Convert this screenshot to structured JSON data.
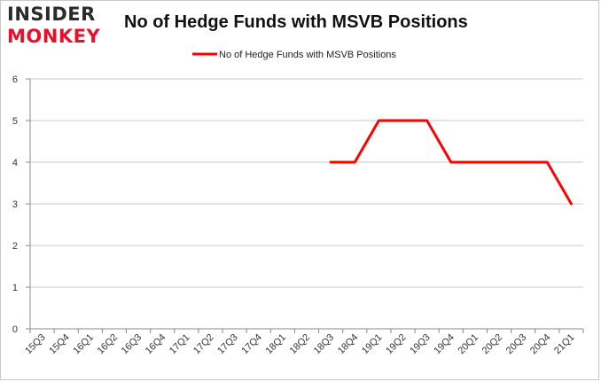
{
  "logo": {
    "line1": "INSIDER",
    "line2": "MONKEY"
  },
  "chart_data": {
    "type": "line",
    "title": "No of Hedge Funds with MSVB Positions",
    "categories": [
      "15Q3",
      "15Q4",
      "16Q1",
      "16Q2",
      "16Q3",
      "16Q4",
      "17Q1",
      "17Q2",
      "17Q3",
      "17Q4",
      "18Q1",
      "18Q2",
      "18Q3",
      "18Q4",
      "19Q1",
      "19Q2",
      "19Q3",
      "19Q4",
      "20Q1",
      "20Q2",
      "20Q3",
      "20Q4",
      "21Q1"
    ],
    "series": [
      {
        "name": "No of Hedge Funds with MSVB Positions",
        "color": "#ff0000",
        "values": [
          null,
          null,
          null,
          null,
          null,
          null,
          null,
          null,
          null,
          null,
          null,
          null,
          4,
          4,
          5,
          5,
          5,
          4,
          4,
          4,
          4,
          4,
          3
        ]
      }
    ],
    "ylim": [
      0,
      6
    ],
    "yticks": [
      0,
      1,
      2,
      3,
      4,
      5,
      6
    ],
    "grid": true,
    "legend_position": "top-center"
  }
}
